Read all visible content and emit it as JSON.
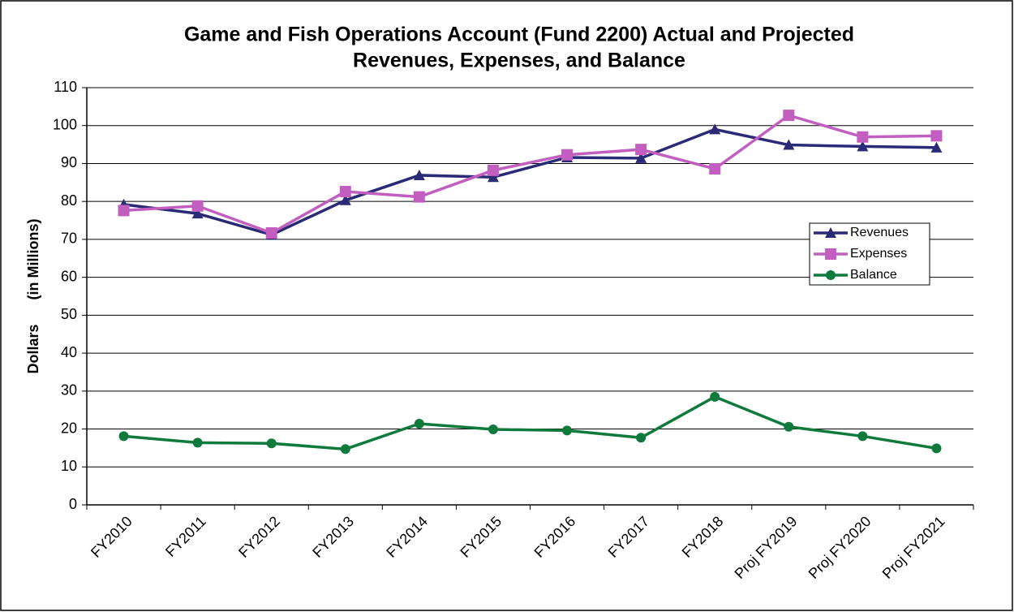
{
  "chart_data": {
    "type": "line",
    "title": [
      "Game and Fish Operations Account (Fund 2200) Actual and Projected",
      "Revenues, Expenses, and Balance"
    ],
    "y_label": "Dollars      (in Millions)",
    "categories": [
      "FY2010",
      "FY2011",
      "FY2012",
      "FY2013",
      "FY2014",
      "FY2015",
      "FY2016",
      "FY2017",
      "FY2018",
      "Proj FY2019",
      "Proj FY2020",
      "Proj FY2021"
    ],
    "series": [
      {
        "name": "Revenues",
        "color": "#2b2a77",
        "marker": "triangle",
        "values": [
          79.2,
          76.8,
          71.2,
          80.3,
          86.9,
          86.4,
          91.6,
          91.4,
          99.0,
          94.9,
          94.5,
          94.2
        ]
      },
      {
        "name": "Expenses",
        "color": "#c25ec0",
        "marker": "square",
        "values": [
          77.6,
          78.8,
          71.7,
          82.6,
          81.2,
          88.2,
          92.3,
          93.7,
          88.6,
          102.7,
          97.0,
          97.3
        ]
      },
      {
        "name": "Balance",
        "color": "#0f7a3c",
        "marker": "circle",
        "values": [
          18.1,
          16.4,
          16.2,
          14.7,
          21.4,
          19.9,
          19.6,
          17.7,
          28.5,
          20.6,
          18.1,
          14.9
        ]
      }
    ],
    "ylim": [
      0,
      110
    ],
    "yticks": [
      0,
      10,
      20,
      30,
      40,
      50,
      60,
      70,
      80,
      90,
      100,
      110
    ],
    "grid": true,
    "legend": "right"
  }
}
